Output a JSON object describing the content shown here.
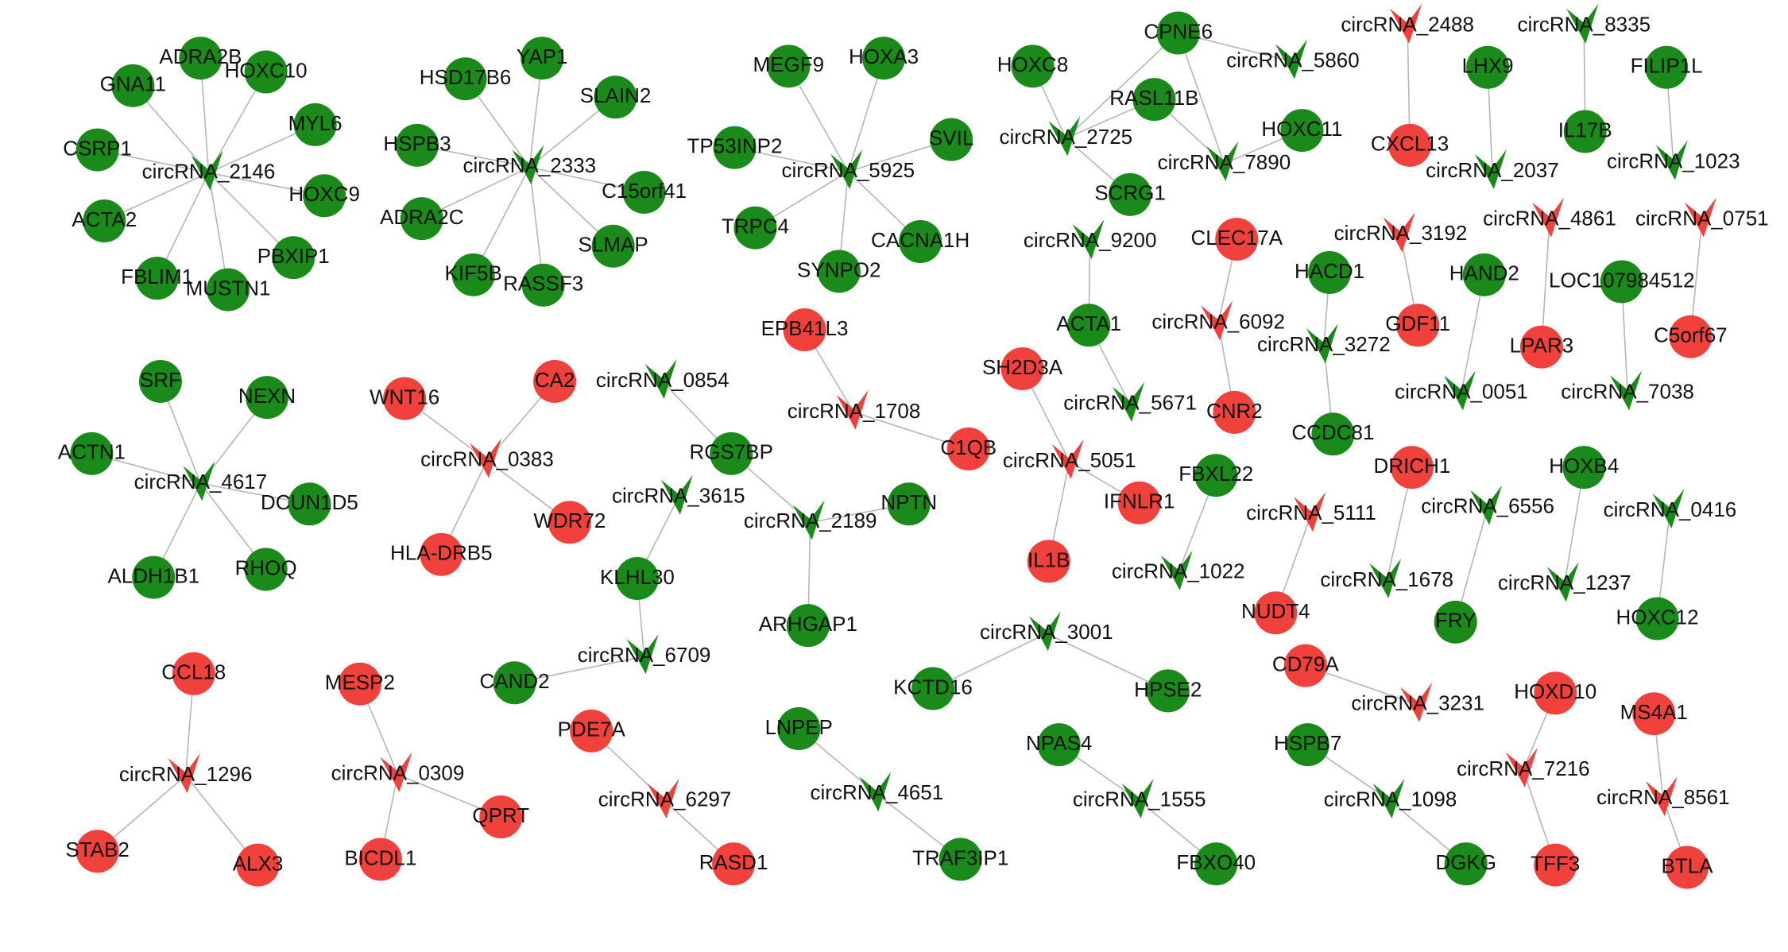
{
  "nodes": [
    {
      "label": "circRNA_2146",
      "type": "circRNA",
      "color": "#1a8a1a"
    },
    {
      "label": "ADRA2B",
      "type": "gene",
      "color": "#1a8a1a"
    },
    {
      "label": "HOXC10",
      "type": "gene",
      "color": "#1a8a1a"
    },
    {
      "label": "GNA11",
      "type": "gene",
      "color": "#1a8a1a"
    },
    {
      "label": "MYL6",
      "type": "gene",
      "color": "#1a8a1a"
    },
    {
      "label": "CSRP1",
      "type": "gene",
      "color": "#1a8a1a"
    },
    {
      "label": "HOXC9",
      "type": "gene",
      "color": "#1a8a1a"
    },
    {
      "label": "ACTA2",
      "type": "gene",
      "color": "#1a8a1a"
    },
    {
      "label": "PBXIP1",
      "type": "gene",
      "color": "#1a8a1a"
    },
    {
      "label": "FBLIM1",
      "type": "gene",
      "color": "#1a8a1a"
    },
    {
      "label": "MUSTN1",
      "type": "gene",
      "color": "#1a8a1a"
    },
    {
      "label": "circRNA_2333",
      "type": "circRNA",
      "color": "#1a8a1a"
    },
    {
      "label": "YAP1",
      "type": "gene",
      "color": "#1a8a1a"
    },
    {
      "label": "HSD17B6",
      "type": "gene",
      "color": "#1a8a1a"
    },
    {
      "label": "SLAIN2",
      "type": "gene",
      "color": "#1a8a1a"
    },
    {
      "label": "HSPB3",
      "type": "gene",
      "color": "#1a8a1a"
    },
    {
      "label": "C15orf41",
      "type": "gene",
      "color": "#1a8a1a"
    },
    {
      "label": "ADRA2C",
      "type": "gene",
      "color": "#1a8a1a"
    },
    {
      "label": "SLMAP",
      "type": "gene",
      "color": "#1a8a1a"
    },
    {
      "label": "KIF5B",
      "type": "gene",
      "color": "#1a8a1a"
    },
    {
      "label": "RASSF3",
      "type": "gene",
      "color": "#1a8a1a"
    },
    {
      "label": "circRNA_5925",
      "type": "circRNA",
      "color": "#1a8a1a"
    },
    {
      "label": "MEGF9",
      "type": "gene",
      "color": "#1a8a1a"
    },
    {
      "label": "HOXA3",
      "type": "gene",
      "color": "#1a8a1a"
    },
    {
      "label": "SVIL",
      "type": "gene",
      "color": "#1a8a1a"
    },
    {
      "label": "TP53INP2",
      "type": "gene",
      "color": "#1a8a1a"
    },
    {
      "label": "TRPC4",
      "type": "gene",
      "color": "#1a8a1a"
    },
    {
      "label": "CACNA1H",
      "type": "gene",
      "color": "#1a8a1a"
    },
    {
      "label": "SYNPO2",
      "type": "gene",
      "color": "#1a8a1a"
    },
    {
      "label": "circRNA_2725",
      "type": "circRNA",
      "color": "#1a8a1a"
    },
    {
      "label": "HOXC8",
      "type": "gene",
      "color": "#1a8a1a"
    },
    {
      "label": "CPNE6",
      "type": "gene",
      "color": "#1a8a1a"
    },
    {
      "label": "circRNA_5860",
      "type": "circRNA",
      "color": "#1a8a1a"
    },
    {
      "label": "RASL11B",
      "type": "gene",
      "color": "#1a8a1a"
    },
    {
      "label": "circRNA_7890",
      "type": "circRNA",
      "color": "#1a8a1a"
    },
    {
      "label": "HOXC11",
      "type": "gene",
      "color": "#1a8a1a"
    },
    {
      "label": "SCRG1",
      "type": "gene",
      "color": "#1a8a1a"
    },
    {
      "label": "circRNA_2488",
      "type": "circRNA",
      "color": "#f0413c"
    },
    {
      "label": "CXCL13",
      "type": "gene",
      "color": "#f0413c"
    },
    {
      "label": "circRNA_8335",
      "type": "circRNA",
      "color": "#1a8a1a"
    },
    {
      "label": "IL17B",
      "type": "gene",
      "color": "#1a8a1a"
    },
    {
      "label": "LHX9",
      "type": "gene",
      "color": "#1a8a1a"
    },
    {
      "label": "circRNA_2037",
      "type": "circRNA",
      "color": "#1a8a1a"
    },
    {
      "label": "FILIP1L",
      "type": "gene",
      "color": "#1a8a1a"
    },
    {
      "label": "circRNA_1023",
      "type": "circRNA",
      "color": "#1a8a1a"
    },
    {
      "label": "circRNA_9200",
      "type": "circRNA",
      "color": "#1a8a1a"
    },
    {
      "label": "ACTA1",
      "type": "gene",
      "color": "#1a8a1a"
    },
    {
      "label": "circRNA_5671",
      "type": "circRNA",
      "color": "#1a8a1a"
    },
    {
      "label": "CLEC17A",
      "type": "gene",
      "color": "#f0413c"
    },
    {
      "label": "circRNA_6092",
      "type": "circRNA",
      "color": "#f0413c"
    },
    {
      "label": "CNR2",
      "type": "gene",
      "color": "#f0413c"
    },
    {
      "label": "circRNA_3192",
      "type": "circRNA",
      "color": "#f0413c"
    },
    {
      "label": "GDF11",
      "type": "gene",
      "color": "#f0413c"
    },
    {
      "label": "HACD1",
      "type": "gene",
      "color": "#1a8a1a"
    },
    {
      "label": "circRNA_3272",
      "type": "circRNA",
      "color": "#1a8a1a"
    },
    {
      "label": "CCDC81",
      "type": "gene",
      "color": "#1a8a1a"
    },
    {
      "label": "HAND2",
      "type": "gene",
      "color": "#1a8a1a"
    },
    {
      "label": "circRNA_0051",
      "type": "circRNA",
      "color": "#1a8a1a"
    },
    {
      "label": "circRNA_4861",
      "type": "circRNA",
      "color": "#f0413c"
    },
    {
      "label": "LPAR3",
      "type": "gene",
      "color": "#f0413c"
    },
    {
      "label": "LOC107984512",
      "type": "gene",
      "color": "#1a8a1a"
    },
    {
      "label": "circRNA_7038",
      "type": "circRNA",
      "color": "#1a8a1a"
    },
    {
      "label": "circRNA_0751",
      "type": "circRNA",
      "color": "#f0413c"
    },
    {
      "label": "C5orf67",
      "type": "gene",
      "color": "#f0413c"
    },
    {
      "label": "EPB41L3",
      "type": "gene",
      "color": "#f0413c"
    },
    {
      "label": "circRNA_1708",
      "type": "circRNA",
      "color": "#f0413c"
    },
    {
      "label": "C1QB",
      "type": "gene",
      "color": "#f0413c"
    },
    {
      "label": "SH2D3A",
      "type": "gene",
      "color": "#f0413c"
    },
    {
      "label": "circRNA_5051",
      "type": "circRNA",
      "color": "#f0413c"
    },
    {
      "label": "IFNLR1",
      "type": "gene",
      "color": "#f0413c"
    },
    {
      "label": "IL1B",
      "type": "gene",
      "color": "#f0413c"
    },
    {
      "label": "circRNA_4617",
      "type": "circRNA",
      "color": "#1a8a1a"
    },
    {
      "label": "SRF",
      "type": "gene",
      "color": "#1a8a1a"
    },
    {
      "label": "NEXN",
      "type": "gene",
      "color": "#1a8a1a"
    },
    {
      "label": "ACTN1",
      "type": "gene",
      "color": "#1a8a1a"
    },
    {
      "label": "DCUN1D5",
      "type": "gene",
      "color": "#1a8a1a"
    },
    {
      "label": "ALDH1B1",
      "type": "gene",
      "color": "#1a8a1a"
    },
    {
      "label": "RHOQ",
      "type": "gene",
      "color": "#1a8a1a"
    },
    {
      "label": "circRNA_0383",
      "type": "circRNA",
      "color": "#f0413c"
    },
    {
      "label": "WNT16",
      "type": "gene",
      "color": "#f0413c"
    },
    {
      "label": "CA2",
      "type": "gene",
      "color": "#f0413c"
    },
    {
      "label": "WDR72",
      "type": "gene",
      "color": "#f0413c"
    },
    {
      "label": "HLA-DRB5",
      "type": "gene",
      "color": "#f0413c"
    },
    {
      "label": "circRNA_0854",
      "type": "circRNA",
      "color": "#1a8a1a"
    },
    {
      "label": "RGS7BP",
      "type": "gene",
      "color": "#1a8a1a"
    },
    {
      "label": "circRNA_2189",
      "type": "circRNA",
      "color": "#1a8a1a"
    },
    {
      "label": "NPTN",
      "type": "gene",
      "color": "#1a8a1a"
    },
    {
      "label": "ARHGAP1",
      "type": "gene",
      "color": "#1a8a1a"
    },
    {
      "label": "circRNA_3615",
      "type": "circRNA",
      "color": "#1a8a1a"
    },
    {
      "label": "KLHL30",
      "type": "gene",
      "color": "#1a8a1a"
    },
    {
      "label": "circRNA_6709",
      "type": "circRNA",
      "color": "#1a8a1a"
    },
    {
      "label": "CAND2",
      "type": "gene",
      "color": "#1a8a1a"
    },
    {
      "label": "FBXL22",
      "type": "gene",
      "color": "#1a8a1a"
    },
    {
      "label": "circRNA_1022",
      "type": "circRNA",
      "color": "#1a8a1a"
    },
    {
      "label": "circRNA_5111",
      "type": "circRNA",
      "color": "#f0413c"
    },
    {
      "label": "NUDT4",
      "type": "gene",
      "color": "#f0413c"
    },
    {
      "label": "DRICH1",
      "type": "gene",
      "color": "#f0413c"
    },
    {
      "label": "circRNA_1678",
      "type": "circRNA",
      "color": "#1a8a1a"
    },
    {
      "label": "circRNA_6556",
      "type": "circRNA",
      "color": "#1a8a1a"
    },
    {
      "label": "FRY",
      "type": "gene",
      "color": "#1a8a1a"
    },
    {
      "label": "HOXB4",
      "type": "gene",
      "color": "#1a8a1a"
    },
    {
      "label": "circRNA_1237",
      "type": "circRNA",
      "color": "#1a8a1a"
    },
    {
      "label": "circRNA_0416",
      "type": "circRNA",
      "color": "#1a8a1a"
    },
    {
      "label": "HOXC12",
      "type": "gene",
      "color": "#1a8a1a"
    },
    {
      "label": "circRNA_3001",
      "type": "circRNA",
      "color": "#1a8a1a"
    },
    {
      "label": "KCTD16",
      "type": "gene",
      "color": "#1a8a1a"
    },
    {
      "label": "HPSE2",
      "type": "gene",
      "color": "#1a8a1a"
    },
    {
      "label": "CD79A",
      "type": "gene",
      "color": "#f0413c"
    },
    {
      "label": "circRNA_3231",
      "type": "circRNA",
      "color": "#f0413c"
    },
    {
      "label": "CCL18",
      "type": "gene",
      "color": "#f0413c"
    },
    {
      "label": "circRNA_1296",
      "type": "circRNA",
      "color": "#f0413c"
    },
    {
      "label": "STAB2",
      "type": "gene",
      "color": "#f0413c"
    },
    {
      "label": "ALX3",
      "type": "gene",
      "color": "#f0413c"
    },
    {
      "label": "MESP2",
      "type": "gene",
      "color": "#f0413c"
    },
    {
      "label": "circRNA_0309",
      "type": "circRNA",
      "color": "#f0413c"
    },
    {
      "label": "QPRT",
      "type": "gene",
      "color": "#f0413c"
    },
    {
      "label": "BICDL1",
      "type": "gene",
      "color": "#f0413c"
    },
    {
      "label": "PDE7A",
      "type": "gene",
      "color": "#f0413c"
    },
    {
      "label": "circRNA_6297",
      "type": "circRNA",
      "color": "#f0413c"
    },
    {
      "label": "RASD1",
      "type": "gene",
      "color": "#f0413c"
    },
    {
      "label": "LNPEP",
      "type": "gene",
      "color": "#1a8a1a"
    },
    {
      "label": "circRNA_4651",
      "type": "circRNA",
      "color": "#1a8a1a"
    },
    {
      "label": "TRAF3IP1",
      "type": "gene",
      "color": "#1a8a1a"
    },
    {
      "label": "NPAS4",
      "type": "gene",
      "color": "#1a8a1a"
    },
    {
      "label": "circRNA_1555",
      "type": "circRNA",
      "color": "#1a8a1a"
    },
    {
      "label": "FBXO40",
      "type": "gene",
      "color": "#1a8a1a"
    },
    {
      "label": "HSPB7",
      "type": "gene",
      "color": "#1a8a1a"
    },
    {
      "label": "circRNA_1098",
      "type": "circRNA",
      "color": "#1a8a1a"
    },
    {
      "label": "DGKG",
      "type": "gene",
      "color": "#1a8a1a"
    },
    {
      "label": "HOXD10",
      "type": "gene",
      "color": "#f0413c"
    },
    {
      "label": "circRNA_7216",
      "type": "circRNA",
      "color": "#f0413c"
    },
    {
      "label": "TFF3",
      "type": "gene",
      "color": "#f0413c"
    },
    {
      "label": "MS4A1",
      "type": "gene",
      "color": "#f0413c"
    },
    {
      "label": "circRNA_8561",
      "type": "circRNA",
      "color": "#f0413c"
    },
    {
      "label": "BTLA",
      "type": "gene",
      "color": "#f0413c"
    }
  ],
  "edges": [
    [
      0,
      1
    ],
    [
      0,
      2
    ],
    [
      0,
      3
    ],
    [
      0,
      4
    ],
    [
      0,
      5
    ],
    [
      0,
      6
    ],
    [
      0,
      7
    ],
    [
      0,
      8
    ],
    [
      0,
      9
    ],
    [
      0,
      10
    ],
    [
      11,
      12
    ],
    [
      11,
      13
    ],
    [
      11,
      14
    ],
    [
      11,
      15
    ],
    [
      11,
      16
    ],
    [
      11,
      17
    ],
    [
      11,
      18
    ],
    [
      11,
      19
    ],
    [
      11,
      20
    ],
    [
      21,
      22
    ],
    [
      21,
      23
    ],
    [
      21,
      24
    ],
    [
      21,
      25
    ],
    [
      21,
      26
    ],
    [
      21,
      27
    ],
    [
      21,
      28
    ],
    [
      29,
      30
    ],
    [
      29,
      31
    ],
    [
      31,
      32
    ],
    [
      31,
      34
    ],
    [
      29,
      33
    ],
    [
      33,
      34
    ],
    [
      34,
      35
    ],
    [
      29,
      36
    ],
    [
      37,
      38
    ],
    [
      39,
      40
    ],
    [
      41,
      42
    ],
    [
      43,
      44
    ],
    [
      45,
      46
    ],
    [
      46,
      47
    ],
    [
      48,
      49
    ],
    [
      49,
      50
    ],
    [
      51,
      52
    ],
    [
      53,
      54
    ],
    [
      54,
      55
    ],
    [
      56,
      57
    ],
    [
      58,
      59
    ],
    [
      60,
      61
    ],
    [
      62,
      63
    ],
    [
      64,
      65
    ],
    [
      65,
      66
    ],
    [
      67,
      68
    ],
    [
      68,
      69
    ],
    [
      68,
      70
    ],
    [
      71,
      72
    ],
    [
      71,
      73
    ],
    [
      71,
      74
    ],
    [
      71,
      75
    ],
    [
      71,
      76
    ],
    [
      71,
      77
    ],
    [
      78,
      79
    ],
    [
      78,
      80
    ],
    [
      78,
      81
    ],
    [
      78,
      82
    ],
    [
      83,
      84
    ],
    [
      84,
      85
    ],
    [
      85,
      86
    ],
    [
      85,
      87
    ],
    [
      88,
      89
    ],
    [
      89,
      90
    ],
    [
      90,
      91
    ],
    [
      92,
      93
    ],
    [
      94,
      95
    ],
    [
      96,
      97
    ],
    [
      98,
      99
    ],
    [
      100,
      101
    ],
    [
      102,
      103
    ],
    [
      104,
      105
    ],
    [
      104,
      106
    ],
    [
      107,
      108
    ],
    [
      109,
      110
    ],
    [
      110,
      111
    ],
    [
      110,
      112
    ],
    [
      113,
      114
    ],
    [
      114,
      115
    ],
    [
      114,
      116
    ],
    [
      117,
      118
    ],
    [
      118,
      119
    ],
    [
      120,
      121
    ],
    [
      121,
      122
    ],
    [
      123,
      124
    ],
    [
      124,
      125
    ],
    [
      126,
      127
    ],
    [
      127,
      128
    ],
    [
      129,
      130
    ],
    [
      130,
      131
    ],
    [
      132,
      133
    ],
    [
      133,
      134
    ]
  ]
}
